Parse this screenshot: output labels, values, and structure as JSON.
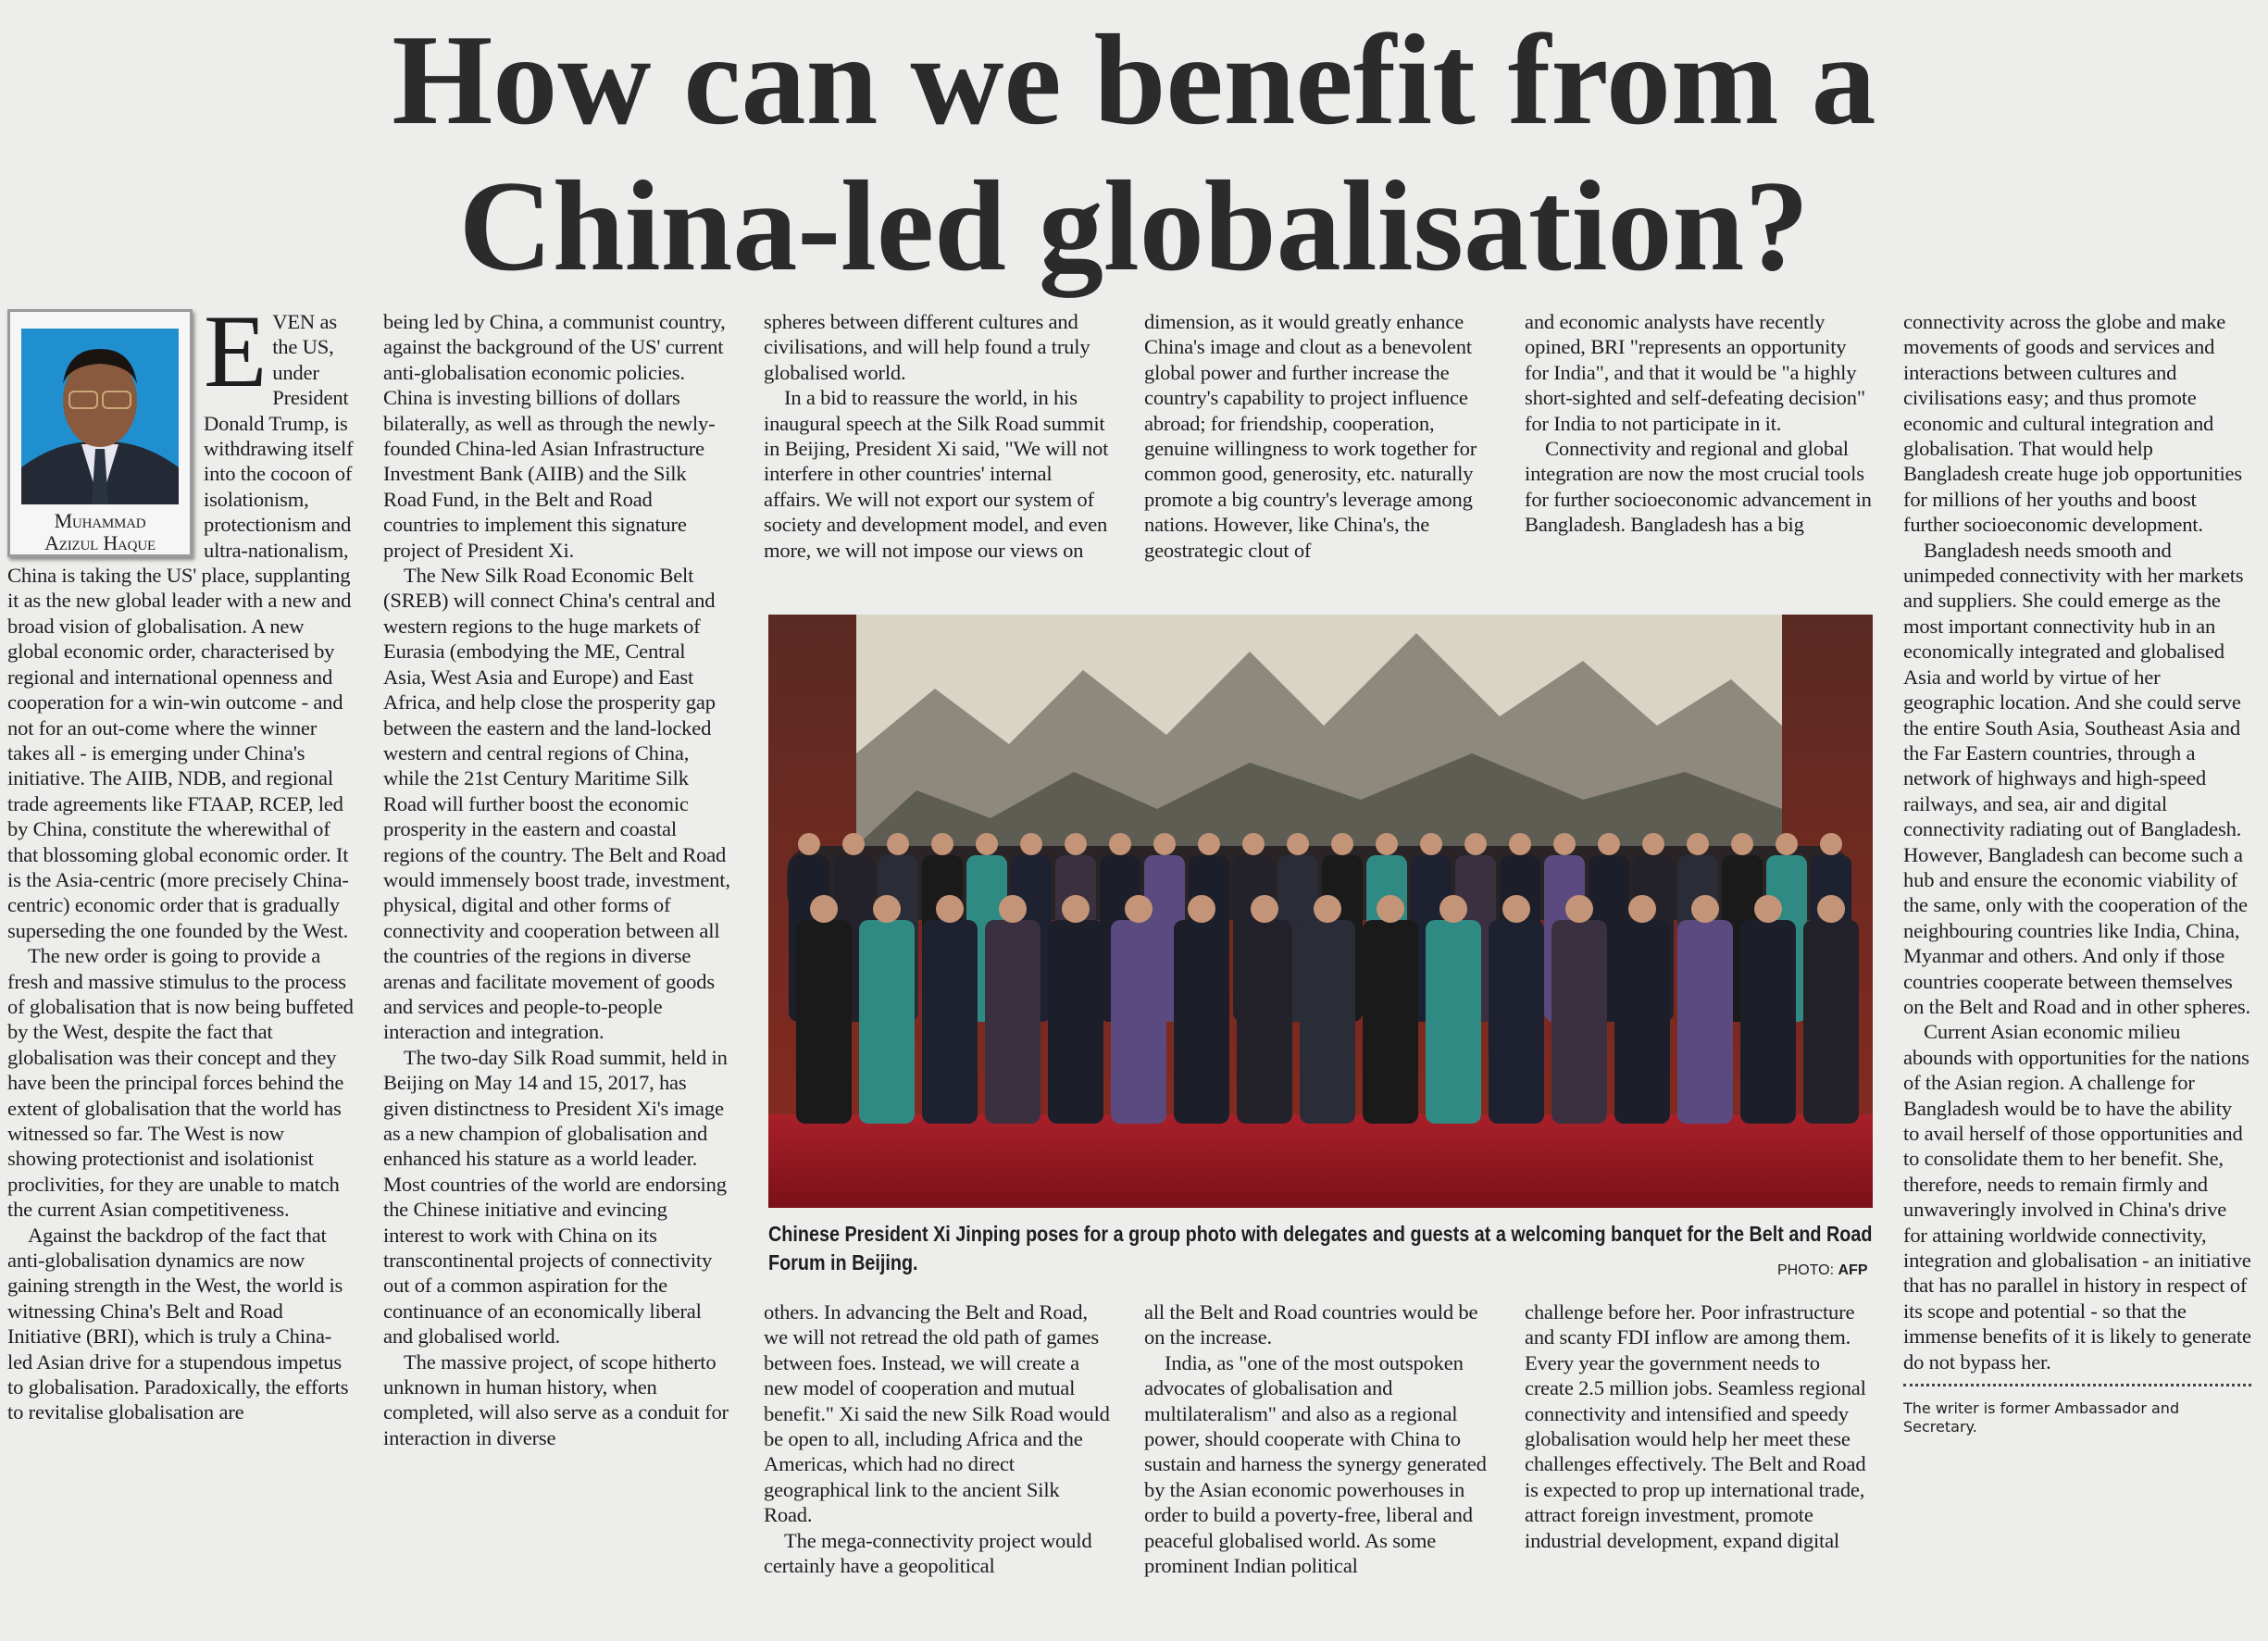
{
  "headline": {
    "line1": "How can we benefit from a",
    "line2": "China-led globalisation?"
  },
  "author": {
    "name_line1": "Muhammad",
    "name_line2": "Azizul Haque"
  },
  "dropcap": "E",
  "columns": {
    "col1": [
      {
        "indent": false,
        "text": "VEN as the US, under President Donald Trump, is withdrawing itself into the cocoon of isolationism, protectionism and ultra-nationalism, China is taking the US' place, supplanting it as the new global leader with a new and broad vision of globalisation. A new global economic order, characterised by regional and international openness and cooperation for a win-win outcome - and not for an out-come where the winner takes all - is emerging under China's initiative. The AIIB, NDB, and regional trade agreements like FTAAP, RCEP, led by China, constitute the wherewithal of that blossoming global economic order. It is the Asia-centric (more precisely China-centric) economic order that is gradually superseding the one founded by the West."
      },
      {
        "indent": true,
        "text": "The new order is going to provide a fresh and massive stimulus to the process of globalisation that is now being buffeted by the West, despite the fact that globalisation was their concept and they have been the principal forces behind the extent of globalisation that the world has witnessed so far. The West is now showing protectionist and isolationist proclivities, for they are unable to match the current Asian competitiveness."
      },
      {
        "indent": true,
        "text": "Against the backdrop of the fact that anti-globalisation dynamics are now gaining strength in the West, the world is witnessing China's Belt and Road Initiative (BRI), which is truly a China-led Asian drive for a stupendous impetus to globalisation. Paradoxically, the efforts to revitalise globalisation are"
      }
    ],
    "col2": [
      {
        "indent": false,
        "text": "being led by China, a communist country, against the background of the US' current anti-globalisation economic policies. China is investing billions of dollars bilaterally, as well as through the newly-founded China-led Asian Infrastructure Investment Bank (AIIB) and the Silk Road Fund, in the Belt and Road countries to implement this signature project of President Xi."
      },
      {
        "indent": true,
        "text": "The New Silk Road Economic Belt (SREB) will connect China's central and western regions to the huge markets of Eurasia (embodying the ME, Central Asia, West Asia and Europe) and East Africa, and help close the prosperity gap between the eastern and the land-locked western and central regions of China, while the 21st Century Maritime Silk Road will further boost the economic prosperity in the eastern and coastal regions of the country. The Belt and Road would immensely boost trade, investment, physical, digital and other forms of connectivity and cooperation between all the countries of the regions in diverse arenas and facilitate movement of goods and services and people-to-people interaction and integration."
      },
      {
        "indent": true,
        "text": "The two-day Silk Road summit, held in Beijing on May 14 and 15, 2017, has given distinctness to President Xi's image as a new champion of globalisation and enhanced his stature as a world leader. Most countries of the world are endorsing the Chinese initiative and evincing interest to work with China on its transcontinental projects of connectivity out of a common aspiration for the continuance of an economically liberal and globalised world."
      },
      {
        "indent": true,
        "text": "The massive project, of scope hitherto unknown in human history, when completed, will also serve as a conduit for interaction in diverse"
      }
    ],
    "col3_top": [
      {
        "indent": false,
        "text": "spheres between different cultures and civilisations, and will help found a truly globalised world."
      },
      {
        "indent": true,
        "text": "In a bid to reassure the world, in his inaugural speech at the Silk Road summit in Beijing, President Xi said, \"We will not interfere in other countries' internal affairs. We will not export our system of society and development model, and even more, we will not impose our views on"
      }
    ],
    "col3_bottom": [
      {
        "indent": false,
        "text": "others. In advancing the Belt and Road, we will not retread the old path of games between foes. Instead, we will create a new model of cooperation and mutual benefit.\" Xi said the new Silk Road would be open to all, including Africa and the Americas, which had no direct geographical link to the ancient Silk Road."
      },
      {
        "indent": true,
        "text": "The mega-connectivity project would certainly have a geopolitical"
      }
    ],
    "col4_top": [
      {
        "indent": false,
        "text": "dimension, as it would greatly enhance China's image and clout as a benevolent global power and further increase the country's capability to project influence abroad; for friendship, cooperation, genuine willingness to work together for common good, generosity, etc. naturally promote a big country's leverage among nations. However, like China's, the geostrategic clout of"
      }
    ],
    "col4_bottom": [
      {
        "indent": false,
        "text": "all the Belt and Road countries would be on the increase."
      },
      {
        "indent": true,
        "text": "India, as \"one of the most outspoken advocates of globalisation and multilateralism\" and also as a regional power, should cooperate with China to sustain and harness the synergy generated by the Asian economic powerhouses in order to build a poverty-free, liberal and peaceful globalised world. As some prominent Indian political"
      }
    ],
    "col5_top": [
      {
        "indent": false,
        "text": "and economic analysts have recently opined, BRI \"represents an opportunity for India\", and that it would be \"a highly short-sighted and self-defeating decision\" for India to not participate in it."
      },
      {
        "indent": true,
        "text": "Connectivity and regional and global integration are now the most crucial tools for further socioeconomic advancement in Bangladesh. Bangladesh has a big"
      }
    ],
    "col5_bottom": [
      {
        "indent": false,
        "text": "challenge before her. Poor infrastructure and scanty FDI inflow are among them. Every year the government needs to create 2.5 million jobs. Seamless regional connectivity and intensified and speedy globalisation would help her meet these challenges effectively. The Belt and Road is expected to prop up international trade, attract foreign investment, promote industrial development, expand digital"
      }
    ],
    "col6": [
      {
        "indent": false,
        "text": "connectivity across the globe and make movements of goods and services and interactions between cultures and civilisations easy; and thus promote economic and cultural integration and globalisation. That would help Bangladesh create huge job opportunities for millions of her youths and boost further socioeconomic development."
      },
      {
        "indent": true,
        "text": "Bangladesh needs smooth and unimpeded connectivity with her markets and suppliers. She could emerge as the most important connectivity hub in an economically integrated and globalised Asia and world by virtue of her geographic location. And she could serve the entire South Asia, Southeast Asia and the Far Eastern countries, through a network of highways and high-speed railways, and sea, air and digital connectivity radiating out of Bangladesh. However, Bangladesh can become such a hub and ensure the economic viability of the same, only with the cooperation of the neighbouring countries like India, China, Myanmar and others. And only if those countries cooperate between themselves on the Belt and Road and in other spheres."
      },
      {
        "indent": true,
        "text": "Current Asian economic milieu abounds with opportunities for the nations of the Asian region. A challenge for Bangladesh would be to have the ability to avail herself of those opportunities and to consolidate them to her benefit. She, therefore, needs to remain firmly and unwaveringly involved in China's drive for attaining worldwide connectivity, integration and globalisation - an initiative that has no parallel in history in respect of its scope and potential - so that the immense benefits of it is likely to generate do not bypass her."
      }
    ]
  },
  "photo": {
    "caption": "Chinese President Xi Jinping poses for a group photo with delegates and guests at a welcoming banquet for the Belt and Road Forum in Beijing.",
    "credit_label": "PHOTO:",
    "credit_source": "AFP"
  },
  "footnote": "The writer is former Ambassador and Secretary."
}
